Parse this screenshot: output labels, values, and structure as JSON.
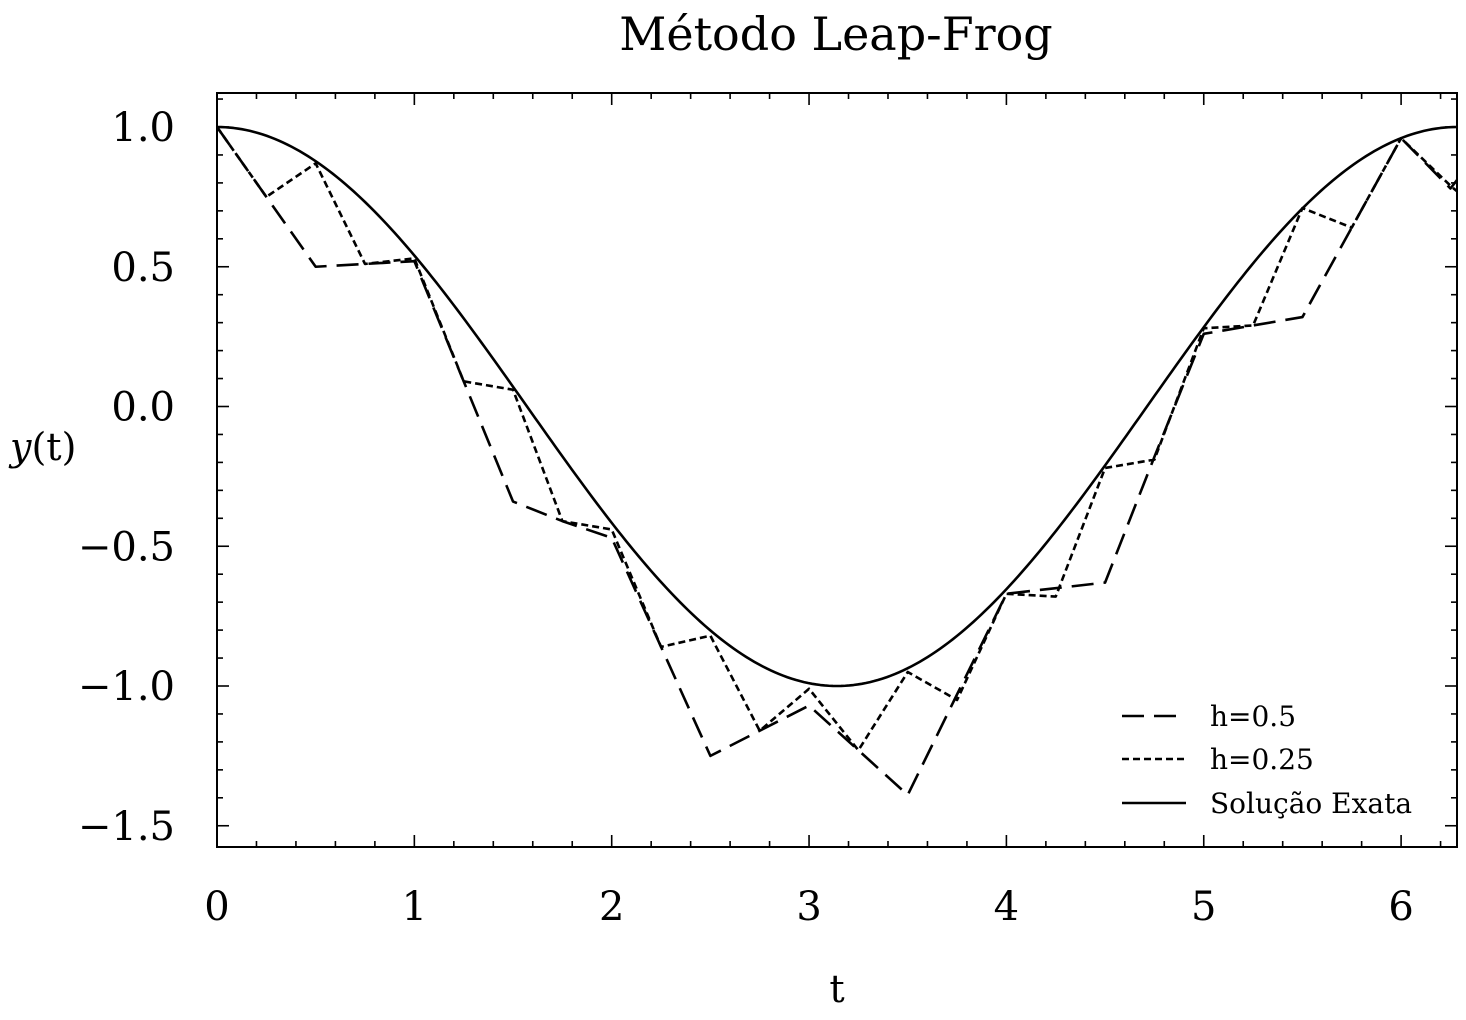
{
  "chart_data": {
    "type": "line",
    "title": "Método Leap-Frog",
    "xlabel": "t",
    "ylabel_italic": "y",
    "ylabel_rest": "(t)",
    "xlim": [
      0,
      6.2832
    ],
    "ylim": [
      -1.58,
      1.12
    ],
    "xticks": [
      {
        "value": 0,
        "label": "0"
      },
      {
        "value": 1,
        "label": "1"
      },
      {
        "value": 2,
        "label": "2"
      },
      {
        "value": 3,
        "label": "3"
      },
      {
        "value": 4,
        "label": "4"
      },
      {
        "value": 5,
        "label": "5"
      },
      {
        "value": 6,
        "label": "6"
      }
    ],
    "yticks": [
      {
        "value": 1.0,
        "label": "1.0"
      },
      {
        "value": 0.5,
        "label": "0.5"
      },
      {
        "value": 0.0,
        "label": "0.0"
      },
      {
        "value": -0.5,
        "label": "−0.5"
      },
      {
        "value": -1.0,
        "label": "−1.0"
      },
      {
        "value": -1.5,
        "label": "−1.5"
      }
    ],
    "grid": false,
    "legend_position": "lower-right",
    "series": [
      {
        "name": "h=0.5",
        "style": "dashed-long",
        "color": "#000000",
        "x": [
          0,
          0.25,
          0.5,
          0.75,
          1.0,
          1.25,
          1.5,
          1.75,
          2.0,
          2.25,
          2.5,
          2.75,
          3.0,
          3.25,
          3.5,
          3.75,
          4.0,
          4.25,
          4.5,
          4.75,
          5.0,
          5.25,
          5.5,
          5.75,
          6.0,
          6.25,
          6.2832
        ],
        "y": [
          1.0,
          0.75,
          0.5,
          0.51,
          0.52,
          0.09,
          -0.34,
          -0.41,
          -0.47,
          -0.86,
          -1.25,
          -1.16,
          -1.07,
          -1.23,
          -1.39,
          -1.03,
          -0.67,
          -0.65,
          -0.63,
          -0.18,
          0.26,
          0.29,
          0.32,
          0.64,
          0.96,
          0.78,
          0.81
        ]
      },
      {
        "name": "h=0.25",
        "style": "dashed-short",
        "color": "#000000",
        "x": [
          0,
          0.25,
          0.5,
          0.75,
          1.0,
          1.25,
          1.5,
          1.75,
          2.0,
          2.25,
          2.5,
          2.75,
          3.0,
          3.25,
          3.5,
          3.75,
          4.0,
          4.25,
          4.5,
          4.75,
          5.0,
          5.25,
          5.5,
          5.75,
          6.0,
          6.25,
          6.2832
        ],
        "y": [
          1.0,
          0.75,
          0.87,
          0.51,
          0.53,
          0.09,
          0.06,
          -0.41,
          -0.44,
          -0.86,
          -0.82,
          -1.16,
          -1.01,
          -1.23,
          -0.95,
          -1.05,
          -0.67,
          -0.68,
          -0.22,
          -0.19,
          0.28,
          0.29,
          0.71,
          0.64,
          0.96,
          0.79,
          0.77
        ]
      },
      {
        "name": "Solução Exata",
        "style": "solid",
        "color": "#000000",
        "function": "cos(t)"
      }
    ]
  }
}
